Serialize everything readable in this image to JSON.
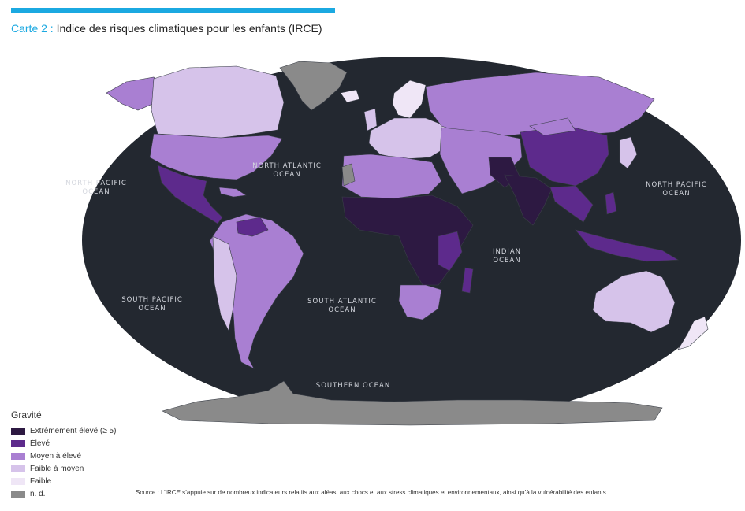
{
  "header": {
    "title_prefix": "Carte 2 :",
    "title_text": " Indice des risques climatiques pour les enfants (IRCE)",
    "accent_color": "#1ba9e1"
  },
  "map": {
    "ocean_color": "#232830",
    "ocean_labels": [
      {
        "id": "north-pacific-west",
        "line1": "NORTH PACIFIC",
        "line2": "OCEAN"
      },
      {
        "id": "north-atlantic",
        "line1": "NORTH ATLANTIC",
        "line2": "OCEAN"
      },
      {
        "id": "north-pacific-east",
        "line1": "NORTH PACIFIC",
        "line2": "OCEAN"
      },
      {
        "id": "indian",
        "line1": "INDIAN",
        "line2": "OCEAN"
      },
      {
        "id": "south-pacific",
        "line1": "SOUTH PACIFIC",
        "line2": "OCEAN"
      },
      {
        "id": "south-atlantic",
        "line1": "SOUTH ATLANTIC",
        "line2": "OCEAN"
      },
      {
        "id": "southern",
        "line1": "SOUTHERN OCEAN",
        "line2": ""
      }
    ]
  },
  "legend": {
    "title": "Gravité",
    "items": [
      {
        "label": "Extrêmement élevé (≥ 5)",
        "color": "#2d1942"
      },
      {
        "label": "Élevé",
        "color": "#5d2a8c"
      },
      {
        "label": "Moyen à élevé",
        "color": "#a97fd2"
      },
      {
        "label": "Faible à moyen",
        "color": "#d6c3ea"
      },
      {
        "label": "Faible",
        "color": "#efe6f6"
      },
      {
        "label": "n. d.",
        "color": "#8a8a8a"
      }
    ]
  },
  "source": "Source : L’IRCE s’appuie sur de nombreux indicateurs relatifs aux aléas, aux chocs et aux stress climatiques et environnementaux, ainsi qu’à la vulnérabilité des enfants."
}
